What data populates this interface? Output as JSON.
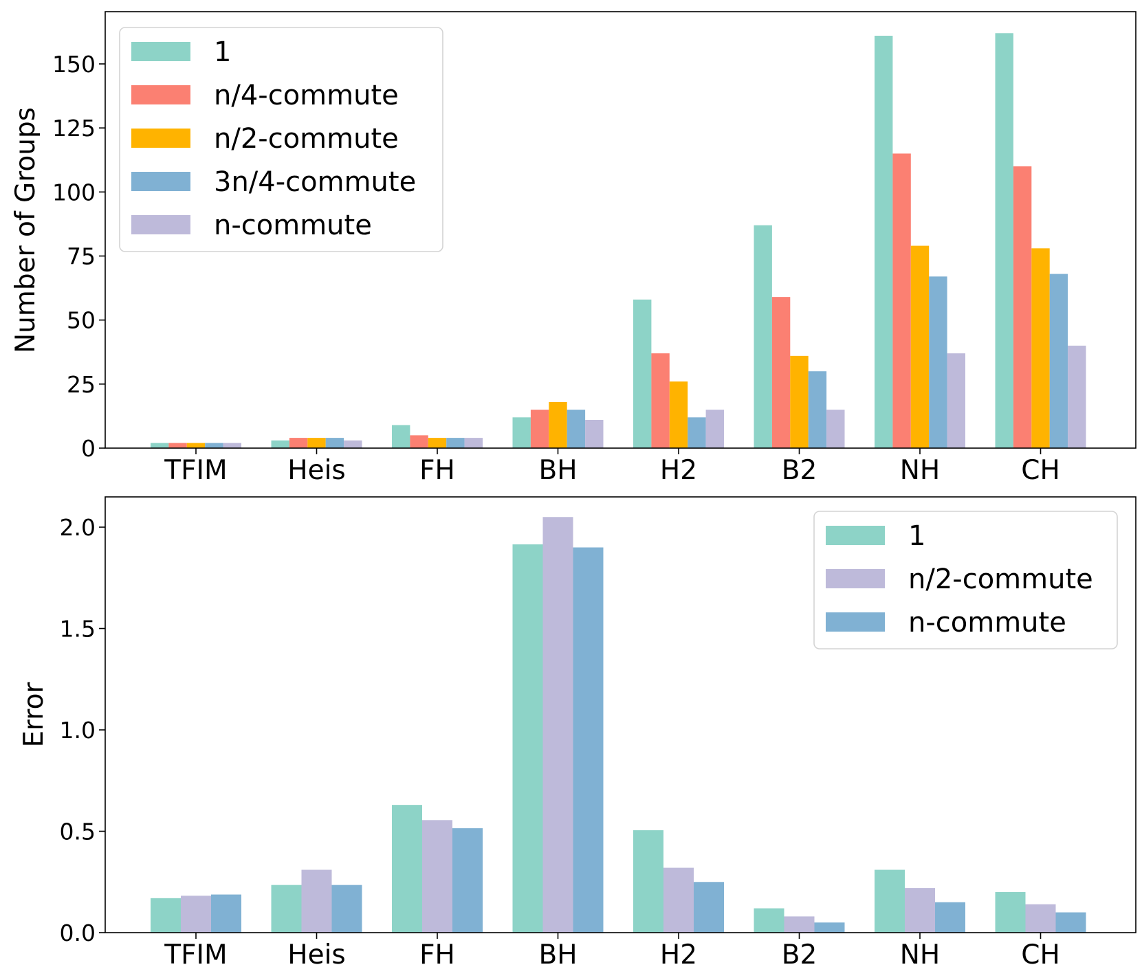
{
  "chart_data": [
    {
      "type": "bar",
      "title": "",
      "xlabel": "",
      "ylabel": "Number of Groups",
      "ylim": [
        0,
        165
      ],
      "yticks": [
        0,
        25,
        50,
        75,
        100,
        125,
        150
      ],
      "ytick_labels": [
        "0",
        "25",
        "50",
        "75",
        "100",
        "125",
        "150"
      ],
      "categories": [
        "TFIM",
        "Heis",
        "FH",
        "BH",
        "H2",
        "B2",
        "NH",
        "CH"
      ],
      "series": [
        {
          "name": "1",
          "color": "#8dd3c7",
          "values": [
            2,
            3,
            9,
            12,
            58,
            87,
            161,
            162
          ]
        },
        {
          "name": "n/4-commute",
          "color": "#fb8072",
          "values": [
            2,
            4,
            5,
            15,
            37,
            59,
            115,
            110
          ]
        },
        {
          "name": "n/2-commute",
          "color": "#ffb300",
          "values": [
            2,
            4,
            4,
            18,
            26,
            36,
            79,
            78
          ]
        },
        {
          "name": "3n/4-commute",
          "color": "#80b1d3",
          "values": [
            2,
            4,
            4,
            15,
            12,
            30,
            67,
            68
          ]
        },
        {
          "name": "n-commute",
          "color": "#bebada",
          "values": [
            2,
            3,
            4,
            11,
            15,
            15,
            37,
            40
          ]
        }
      ],
      "legend_position": "top-left"
    },
    {
      "type": "bar",
      "title": "",
      "xlabel": "",
      "ylabel": "Error",
      "ylim": [
        0,
        2.15
      ],
      "yticks": [
        0,
        0.5,
        1.0,
        1.5,
        2.0
      ],
      "ytick_labels": [
        "0.0",
        "0.5",
        "1.0",
        "1.5",
        "2.0"
      ],
      "categories": [
        "TFIM",
        "Heis",
        "FH",
        "BH",
        "H2",
        "B2",
        "NH",
        "CH"
      ],
      "series": [
        {
          "name": "1",
          "color": "#8dd3c7",
          "values": [
            0.17,
            0.235,
            0.63,
            1.915,
            0.505,
            0.12,
            0.31,
            0.2
          ]
        },
        {
          "name": "n/2-commute",
          "color": "#bebada",
          "values": [
            0.182,
            0.31,
            0.555,
            2.05,
            0.32,
            0.08,
            0.22,
            0.14
          ]
        },
        {
          "name": "n-commute",
          "color": "#80b1d3",
          "values": [
            0.188,
            0.235,
            0.515,
            1.9,
            0.25,
            0.05,
            0.15,
            0.1
          ]
        }
      ],
      "legend_position": "top-right"
    }
  ]
}
